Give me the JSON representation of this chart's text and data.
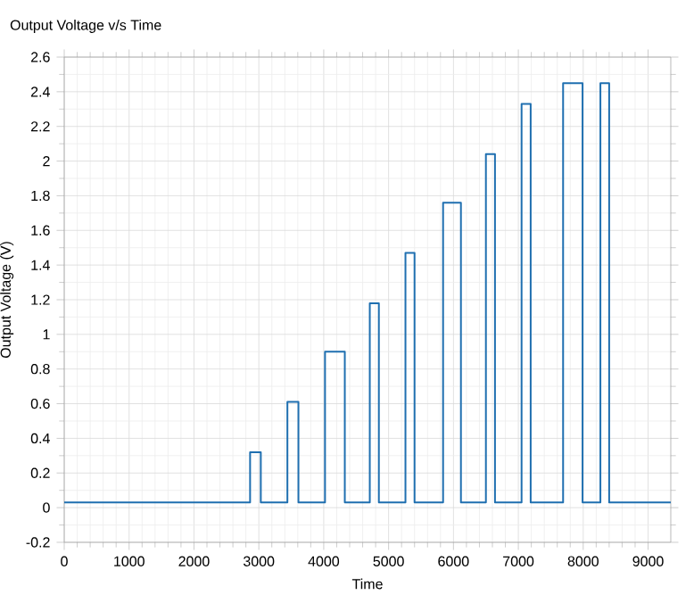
{
  "chart_data": {
    "type": "line",
    "title": "Output Voltage v/s Time",
    "xlabel": "Time",
    "ylabel": "Output Voltage (V)",
    "x": [
      0,
      2865,
      2865,
      3030,
      3030,
      3440,
      3440,
      3610,
      3610,
      4020,
      4020,
      4325,
      4325,
      4710,
      4710,
      4850,
      4850,
      5260,
      5260,
      5400,
      5400,
      5840,
      5840,
      6115,
      6115,
      6500,
      6500,
      6640,
      6640,
      7050,
      7050,
      7190,
      7190,
      7690,
      7690,
      7990,
      7990,
      8265,
      8265,
      8400,
      8400,
      9350
    ],
    "series": [
      {
        "color": "#1f6fb0",
        "values": [
          0.03,
          0.03,
          0.32,
          0.32,
          0.03,
          0.03,
          0.61,
          0.61,
          0.03,
          0.03,
          0.9,
          0.9,
          0.03,
          0.03,
          1.18,
          1.18,
          0.03,
          0.03,
          1.47,
          1.47,
          0.03,
          0.03,
          1.76,
          1.76,
          0.03,
          0.03,
          2.04,
          2.04,
          0.03,
          0.03,
          2.33,
          2.33,
          0.03,
          0.03,
          2.45,
          2.45,
          0.03,
          0.03,
          2.45,
          2.45,
          0.03,
          0.03
        ]
      }
    ],
    "xlim": [
      0,
      9350
    ],
    "ylim": [
      -0.2,
      2.6
    ],
    "xticks": [
      0,
      1000,
      2000,
      3000,
      4000,
      5000,
      6000,
      7000,
      8000,
      9000
    ],
    "yticks": [
      -0.2,
      0,
      0.2,
      0.4,
      0.6,
      0.8,
      1,
      1.2,
      1.4,
      1.6,
      1.8,
      2,
      2.2,
      2.4,
      2.6
    ],
    "grid": true,
    "marker": "none",
    "line_style": "solid"
  }
}
